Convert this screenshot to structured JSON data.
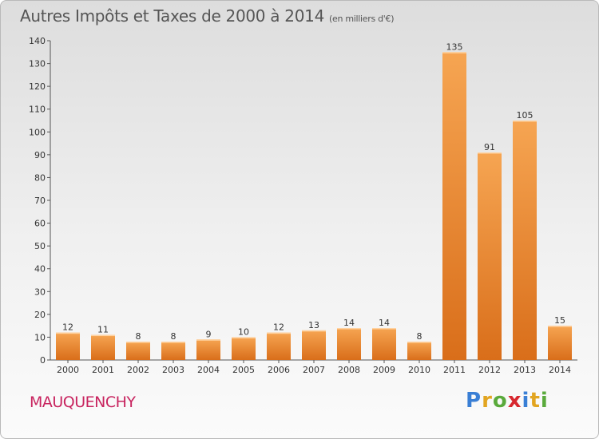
{
  "title": "Autres Impôts et Taxes de 2000 à 2014",
  "subtitle": "(en milliers d'€)",
  "commune": "MAUQUENCHY",
  "logo": {
    "letters": [
      "P",
      "r",
      "o",
      "x",
      "i",
      "t",
      "i"
    ],
    "colors": [
      "#3a7fd5",
      "#e2a521",
      "#5aaa3c",
      "#d7282f",
      "#3a7fd5",
      "#e2a521",
      "#5aaa3c"
    ]
  },
  "colors": {
    "bar_light": "#f6a552",
    "bar_dark": "#d96e1a",
    "title": "#555555",
    "commune": "#c8245f"
  },
  "chart_data": {
    "type": "bar",
    "categories": [
      "2000",
      "2001",
      "2002",
      "2003",
      "2004",
      "2005",
      "2006",
      "2007",
      "2008",
      "2009",
      "2010",
      "2011",
      "2012",
      "2013",
      "2014"
    ],
    "values": [
      12,
      11,
      8,
      8,
      9,
      10,
      12,
      13,
      14,
      14,
      8,
      135,
      91,
      105,
      15
    ],
    "ylim": [
      0,
      140
    ],
    "yticks": [
      0,
      10,
      20,
      30,
      40,
      50,
      60,
      70,
      80,
      90,
      100,
      110,
      120,
      130,
      140
    ],
    "grid": false,
    "data_labels": true
  }
}
